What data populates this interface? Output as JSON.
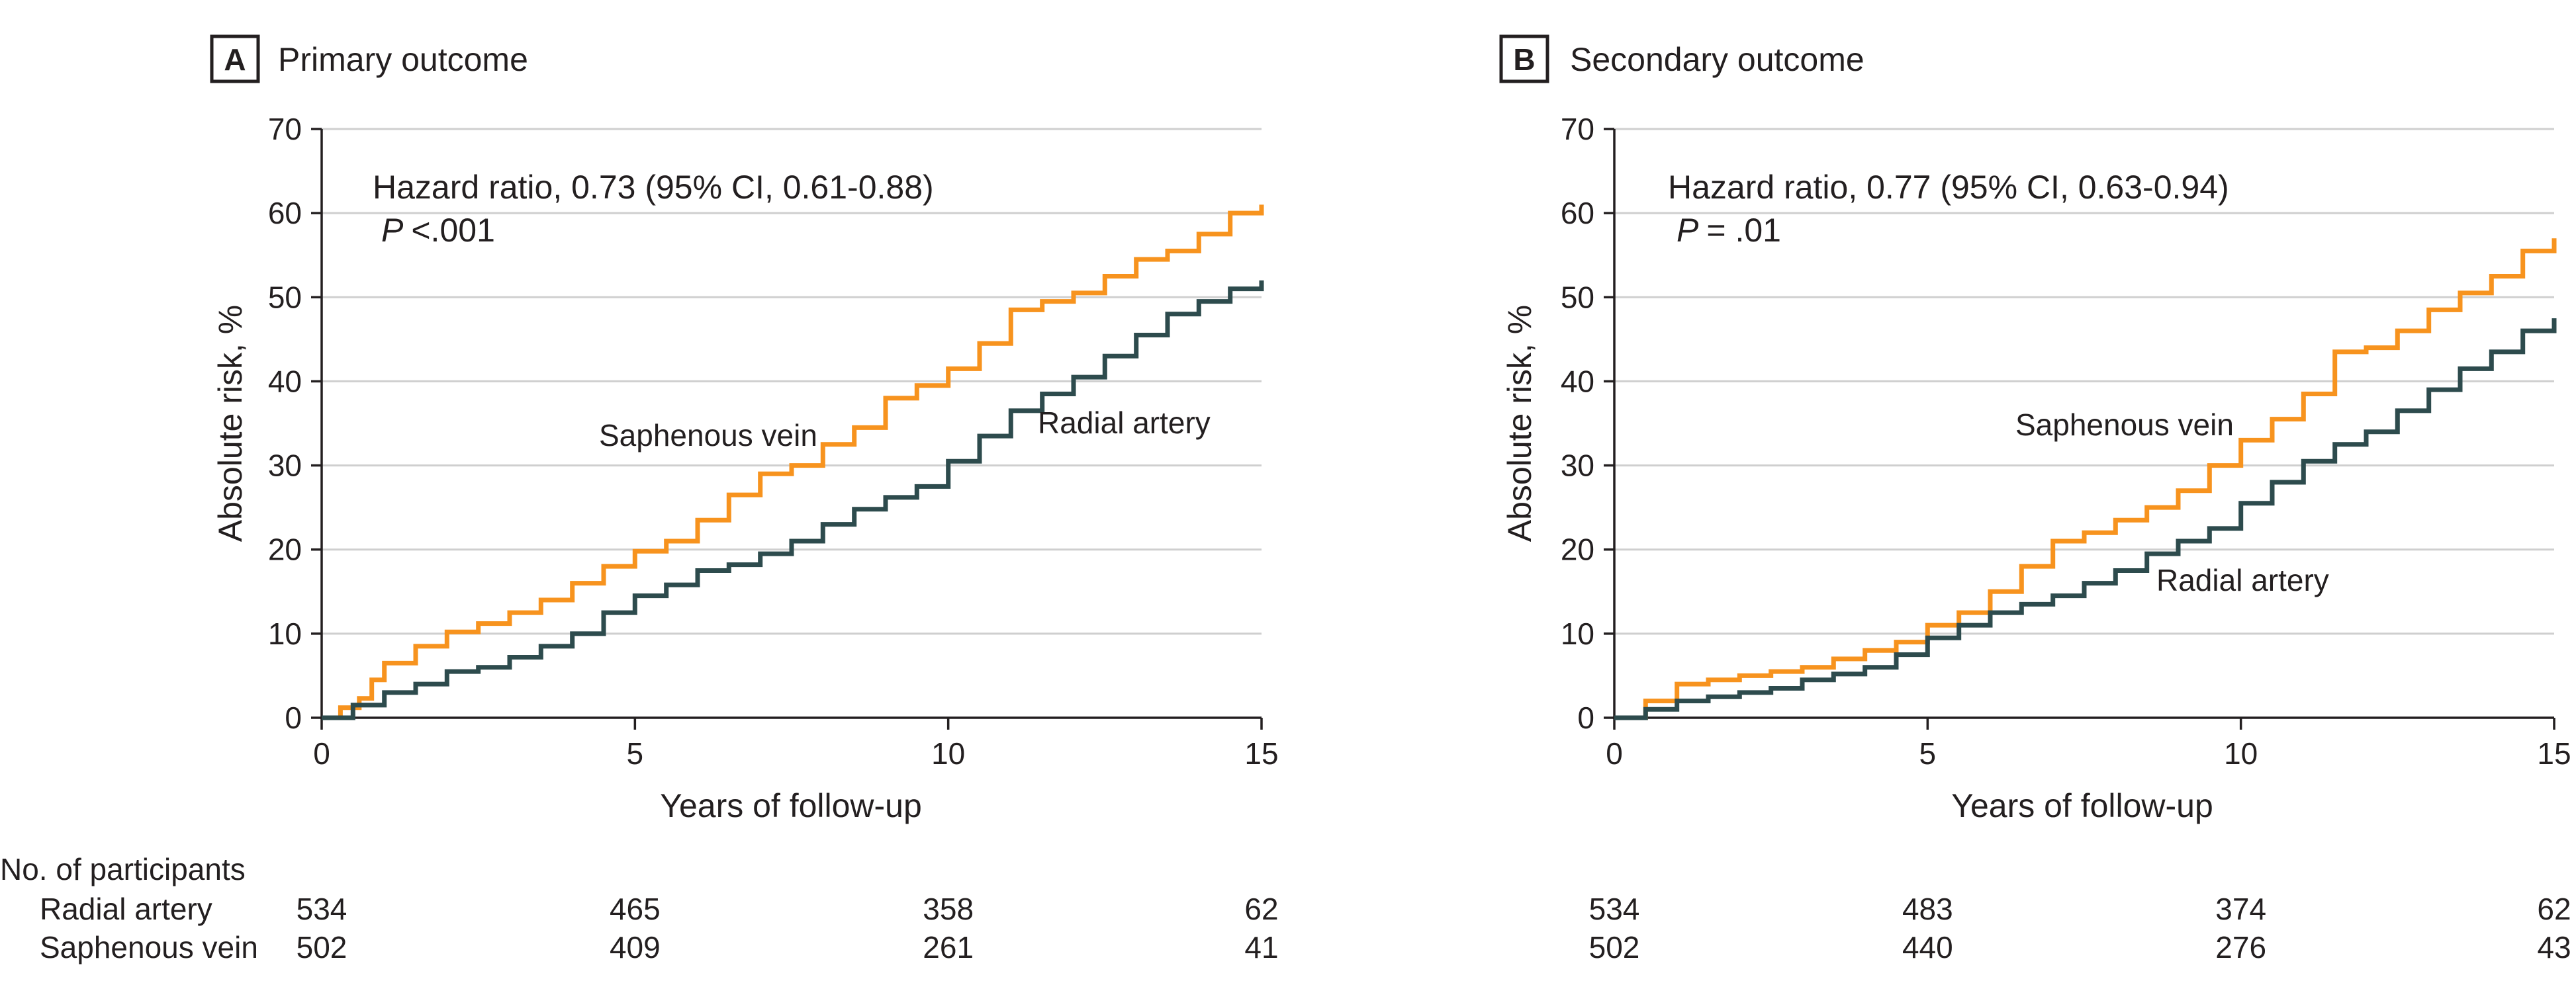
{
  "chart_data": [
    {
      "type": "line",
      "panel_letter": "A",
      "title": "Primary outcome",
      "xlabel": "Years of follow-up",
      "ylabel": "Absolute risk, %",
      "xlim": [
        0,
        15
      ],
      "ylim": [
        0,
        70
      ],
      "xticks": [
        0,
        5,
        10,
        15
      ],
      "yticks": [
        0,
        10,
        20,
        30,
        40,
        50,
        60,
        70
      ],
      "grid": true,
      "annotation_line1": "Hazard ratio, 0.73 (95% CI, 0.61-0.88)",
      "p_symbol": "P",
      "p_value": "<.001",
      "series": [
        {
          "name": "Saphenous vein",
          "color": "#f7931e",
          "points": [
            [
              0,
              0
            ],
            [
              0.3,
              1.2
            ],
            [
              0.6,
              2.3
            ],
            [
              0.8,
              4.5
            ],
            [
              1.0,
              6.5
            ],
            [
              1.5,
              8.5
            ],
            [
              2.0,
              10.2
            ],
            [
              2.5,
              11.2
            ],
            [
              3.0,
              12.5
            ],
            [
              3.5,
              14
            ],
            [
              4.0,
              16
            ],
            [
              4.5,
              18
            ],
            [
              5.0,
              19.8
            ],
            [
              5.5,
              21
            ],
            [
              6.0,
              23.5
            ],
            [
              6.5,
              26.5
            ],
            [
              7.0,
              29
            ],
            [
              7.5,
              30
            ],
            [
              8.0,
              32.5
            ],
            [
              8.5,
              34.5
            ],
            [
              9.0,
              38
            ],
            [
              9.5,
              39.5
            ],
            [
              10.0,
              41.5
            ],
            [
              10.5,
              44.5
            ],
            [
              11.0,
              48.5
            ],
            [
              11.5,
              49.5
            ],
            [
              12.0,
              50.5
            ],
            [
              12.5,
              52.5
            ],
            [
              13.0,
              54.5
            ],
            [
              13.5,
              55.5
            ],
            [
              14.0,
              57.5
            ],
            [
              14.5,
              60
            ],
            [
              15.0,
              61
            ]
          ]
        },
        {
          "name": "Radial artery",
          "color": "#2d4b4d",
          "points": [
            [
              0,
              0
            ],
            [
              0.5,
              1.5
            ],
            [
              1.0,
              3
            ],
            [
              1.5,
              4
            ],
            [
              2.0,
              5.5
            ],
            [
              2.5,
              6
            ],
            [
              3.0,
              7.2
            ],
            [
              3.5,
              8.5
            ],
            [
              4.0,
              10
            ],
            [
              4.5,
              12.5
            ],
            [
              5.0,
              14.5
            ],
            [
              5.5,
              15.8
            ],
            [
              6.0,
              17.5
            ],
            [
              6.5,
              18.2
            ],
            [
              7.0,
              19.5
            ],
            [
              7.5,
              21
            ],
            [
              8.0,
              23
            ],
            [
              8.5,
              24.8
            ],
            [
              9.0,
              26.2
            ],
            [
              9.5,
              27.5
            ],
            [
              10.0,
              30.5
            ],
            [
              10.5,
              33.5
            ],
            [
              11.0,
              36.5
            ],
            [
              11.5,
              38.5
            ],
            [
              12.0,
              40.5
            ],
            [
              12.5,
              43
            ],
            [
              13.0,
              45.5
            ],
            [
              13.5,
              48
            ],
            [
              14.0,
              49.5
            ],
            [
              14.5,
              51
            ],
            [
              15.0,
              52
            ]
          ]
        }
      ],
      "at_risk": {
        "header": "No. of participants",
        "rows": [
          {
            "label": "Radial artery",
            "values": [
              "534",
              "465",
              "358",
              "62"
            ]
          },
          {
            "label": "Saphenous vein",
            "values": [
              "502",
              "409",
              "261",
              "41"
            ]
          }
        ]
      }
    },
    {
      "type": "line",
      "panel_letter": "B",
      "title": "Secondary outcome",
      "xlabel": "Years of follow-up",
      "ylabel": "Absolute risk, %",
      "xlim": [
        0,
        15
      ],
      "ylim": [
        0,
        70
      ],
      "xticks": [
        0,
        5,
        10,
        15
      ],
      "yticks": [
        0,
        10,
        20,
        30,
        40,
        50,
        60,
        70
      ],
      "grid": true,
      "annotation_line1": "Hazard ratio, 0.77 (95% CI, 0.63-0.94)",
      "p_symbol": "P",
      "p_value": "= .01",
      "series": [
        {
          "name": "Saphenous vein",
          "color": "#f7931e",
          "points": [
            [
              0,
              0
            ],
            [
              0.5,
              2
            ],
            [
              1.0,
              4
            ],
            [
              1.5,
              4.5
            ],
            [
              2.0,
              5
            ],
            [
              2.5,
              5.5
            ],
            [
              3.0,
              6
            ],
            [
              3.5,
              7
            ],
            [
              4.0,
              8
            ],
            [
              4.5,
              9
            ],
            [
              5.0,
              11
            ],
            [
              5.5,
              12.5
            ],
            [
              6.0,
              15
            ],
            [
              6.5,
              18
            ],
            [
              7.0,
              21
            ],
            [
              7.5,
              22
            ],
            [
              8.0,
              23.5
            ],
            [
              8.5,
              25
            ],
            [
              9.0,
              27
            ],
            [
              9.5,
              30
            ],
            [
              10.0,
              33
            ],
            [
              10.5,
              35.5
            ],
            [
              11.0,
              38.5
            ],
            [
              11.5,
              43.5
            ],
            [
              12.0,
              44
            ],
            [
              12.5,
              46
            ],
            [
              13.0,
              48.5
            ],
            [
              13.5,
              50.5
            ],
            [
              14.0,
              52.5
            ],
            [
              14.5,
              55.5
            ],
            [
              15.0,
              57
            ]
          ]
        },
        {
          "name": "Radial artery",
          "color": "#2d4b4d",
          "points": [
            [
              0,
              0
            ],
            [
              0.5,
              1
            ],
            [
              1.0,
              2
            ],
            [
              1.5,
              2.5
            ],
            [
              2.0,
              3
            ],
            [
              2.5,
              3.5
            ],
            [
              3.0,
              4.5
            ],
            [
              3.5,
              5.2
            ],
            [
              4.0,
              6
            ],
            [
              4.5,
              7.5
            ],
            [
              5.0,
              9.5
            ],
            [
              5.5,
              11
            ],
            [
              6.0,
              12.5
            ],
            [
              6.5,
              13.5
            ],
            [
              7.0,
              14.5
            ],
            [
              7.5,
              16
            ],
            [
              8.0,
              17.5
            ],
            [
              8.5,
              19.5
            ],
            [
              9.0,
              21
            ],
            [
              9.5,
              22.5
            ],
            [
              10.0,
              25.5
            ],
            [
              10.5,
              28
            ],
            [
              11.0,
              30.5
            ],
            [
              11.5,
              32.5
            ],
            [
              12.0,
              34
            ],
            [
              12.5,
              36.5
            ],
            [
              13.0,
              39
            ],
            [
              13.5,
              41.5
            ],
            [
              14.0,
              43.5
            ],
            [
              14.5,
              46
            ],
            [
              15.0,
              47.5
            ]
          ]
        }
      ],
      "at_risk": {
        "header": "",
        "rows": [
          {
            "label": "",
            "values": [
              "534",
              "483",
              "374",
              "62"
            ]
          },
          {
            "label": "",
            "values": [
              "502",
              "440",
              "276",
              "43"
            ]
          }
        ]
      }
    }
  ]
}
